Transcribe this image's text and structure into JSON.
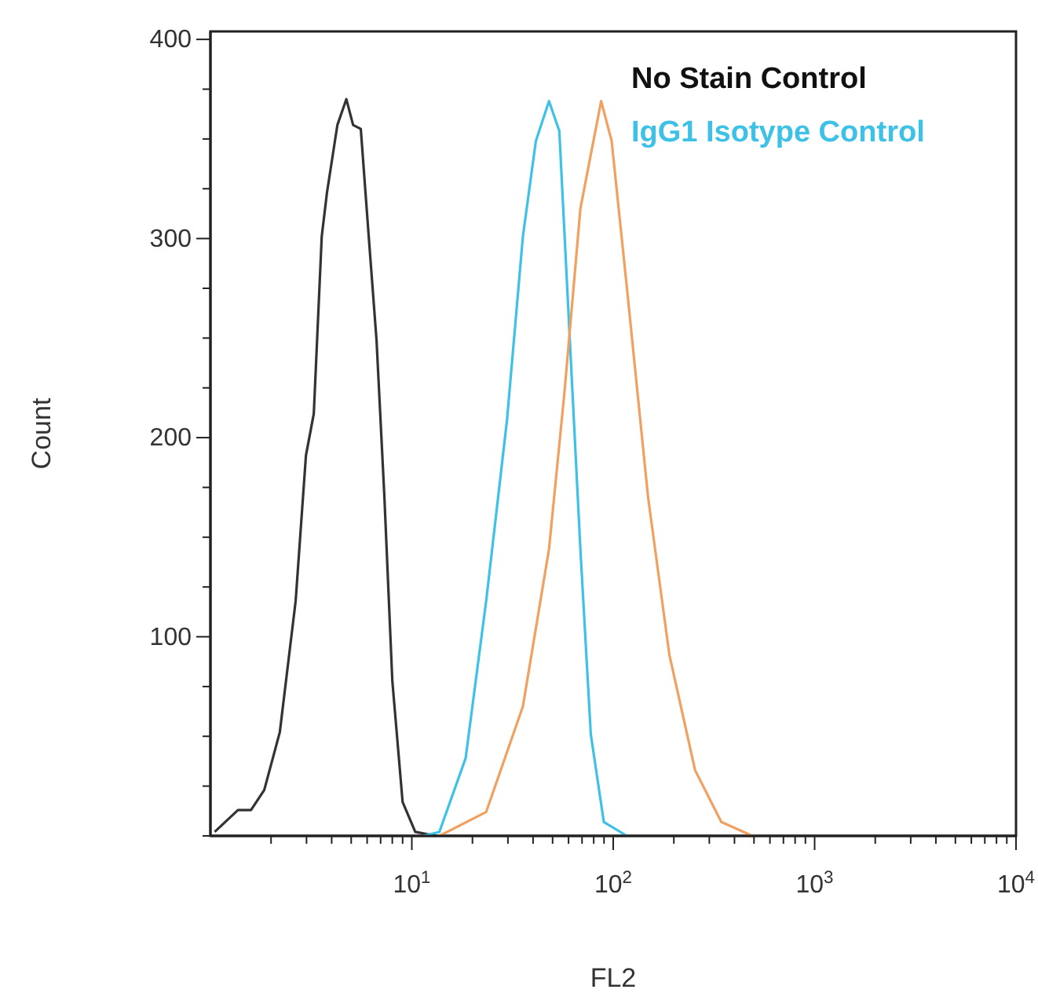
{
  "chart_data": {
    "type": "line",
    "xlabel": "FL2",
    "ylabel": "Count",
    "log": "x",
    "grid": false,
    "legend": "top right",
    "line_style": "solid",
    "marker": "none",
    "xlim": [
      1,
      10000
    ],
    "ylim": [
      0,
      404
    ],
    "xticks": [
      {
        "value": 2,
        "label": null
      },
      {
        "value": 3,
        "label": null
      },
      {
        "value": 4,
        "label": null
      },
      {
        "value": 5,
        "label": null
      },
      {
        "value": 6,
        "label": null
      },
      {
        "value": 7,
        "label": null
      },
      {
        "value": 8,
        "label": null
      },
      {
        "value": 9,
        "label": null
      },
      {
        "value": 10,
        "label": "10$^{1}$"
      },
      {
        "value": 20,
        "label": null
      },
      {
        "value": 30,
        "label": null
      },
      {
        "value": 40,
        "label": null
      },
      {
        "value": 50,
        "label": null
      },
      {
        "value": 60,
        "label": null
      },
      {
        "value": 70,
        "label": null
      },
      {
        "value": 80,
        "label": null
      },
      {
        "value": 90,
        "label": null
      },
      {
        "value": 100,
        "label": "10$^{2}$"
      },
      {
        "value": 200,
        "label": null
      },
      {
        "value": 300,
        "label": null
      },
      {
        "value": 400,
        "label": null
      },
      {
        "value": 500,
        "label": null
      },
      {
        "value": 600,
        "label": null
      },
      {
        "value": 700,
        "label": null
      },
      {
        "value": 800,
        "label": null
      },
      {
        "value": 900,
        "label": null
      },
      {
        "value": 1000,
        "label": "10$^{3}$"
      },
      {
        "value": 2000,
        "label": null
      },
      {
        "value": 3000,
        "label": null
      },
      {
        "value": 4000,
        "label": null
      },
      {
        "value": 5000,
        "label": null
      },
      {
        "value": 6000,
        "label": null
      },
      {
        "value": 7000,
        "label": null
      },
      {
        "value": 8000,
        "label": null
      },
      {
        "value": 9000,
        "label": null
      },
      {
        "value": 10000,
        "label": "10$^{4}$"
      }
    ],
    "yticks": [
      {
        "value": 0,
        "label": null
      },
      {
        "value": 25,
        "label": null
      },
      {
        "value": 50,
        "label": null
      },
      {
        "value": 75,
        "label": null
      },
      100,
      {
        "value": 125,
        "label": null
      },
      {
        "value": 150,
        "label": null
      },
      {
        "value": 175,
        "label": null
      },
      200,
      {
        "value": 225,
        "label": null
      },
      {
        "value": 250,
        "label": null
      },
      {
        "value": 275,
        "label": null
      },
      300,
      {
        "value": 325,
        "label": null
      },
      {
        "value": 350,
        "label": null
      },
      {
        "value": 375,
        "label": null
      },
      400
    ],
    "series": [
      {
        "name": "No Stain Control",
        "color": "#333333",
        "x": [
          1.05,
          1.37,
          1.59,
          1.85,
          2.21,
          2.65,
          2.98,
          3.26,
          3.57,
          3.79,
          4.27,
          4.73,
          5.11,
          5.58,
          6.11,
          6.68,
          7.31,
          8.0,
          9.0,
          10.4,
          13.2
        ],
        "values": [
          2,
          13,
          13,
          23,
          52,
          118,
          191,
          212,
          301,
          323,
          357,
          370,
          357,
          355,
          301,
          249,
          170,
          78,
          17,
          2,
          0
        ]
      },
      {
        "name": "IgG1 Isotype Control",
        "color": "#3ec1e6",
        "x": [
          11.4,
          13.7,
          18.5,
          23.4,
          29.7,
          35.6,
          41.3,
          48,
          54,
          60.9,
          68.7,
          77.4,
          89.8,
          117
        ],
        "values": [
          0,
          2,
          39,
          118,
          209,
          301,
          349,
          369,
          354,
          249,
          144,
          51,
          7,
          0
        ]
      },
      {
        "color": "#f0a060",
        "x": [
          13.7,
          23.4,
          35.6,
          48,
          57.3,
          68.7,
          75,
          87.1,
          98.2,
          117,
          149,
          190,
          255,
          344,
          491
        ],
        "values": [
          0,
          12,
          65,
          144,
          223,
          315,
          335,
          369,
          349,
          275,
          170,
          91,
          33,
          7,
          0
        ]
      }
    ]
  }
}
